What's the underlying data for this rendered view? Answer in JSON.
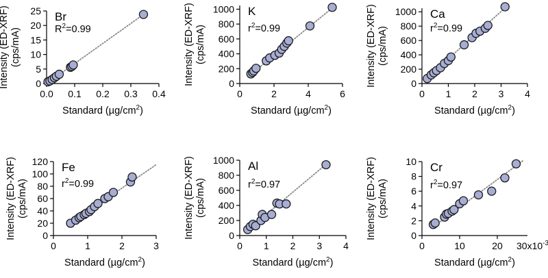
{
  "colors": {
    "marker_fill": "#a7add3",
    "marker_edge": "#1a1a1a",
    "fit_line": "#8a8a8a",
    "axis": "#000000"
  },
  "chart_data": [
    {
      "type": "scatter",
      "element": "Br",
      "r2_prefix": "R",
      "r2_value": "=0.99",
      "xlabel": "Standard (µg/cm",
      "xlabel_sup": "2",
      "xlabel_end": ")",
      "ylabel_1": "Intensity (ED-XRF)",
      "ylabel_2": "(cps/mA)",
      "xlim": [
        0,
        0.4
      ],
      "ylim": [
        0,
        25
      ],
      "xticks": [
        0.0,
        0.1,
        0.2,
        0.3,
        0.4
      ],
      "xtick_labels": [
        "0.0",
        "0.1",
        "0.2",
        "0.3",
        "0.4"
      ],
      "yticks": [
        0,
        5,
        10,
        15,
        20,
        25
      ],
      "ytick_labels": [
        "0",
        "5",
        "10",
        "15",
        "20",
        "25"
      ],
      "x_multiplier_label": "",
      "fit": {
        "x": [
          0.0,
          0.345
        ],
        "y": [
          0.0,
          23.8
        ]
      },
      "x": [
        0.005,
        0.012,
        0.02,
        0.028,
        0.035,
        0.045,
        0.085,
        0.09,
        0.095,
        0.345
      ],
      "y": [
        0.6,
        0.9,
        1.4,
        2.0,
        2.5,
        3.2,
        5.6,
        5.9,
        6.4,
        23.8
      ]
    },
    {
      "type": "scatter",
      "element": "K",
      "r2_prefix": "r",
      "r2_value": "=0.99",
      "xlabel": "Standard (µg/cm",
      "xlabel_sup": "2",
      "xlabel_end": ")",
      "ylabel_1": "Intensity (ED-XRF)",
      "ylabel_2": "(cps/mA)",
      "xlim": [
        0,
        6
      ],
      "ylim": [
        0,
        1050
      ],
      "xticks": [
        0,
        2,
        4,
        6
      ],
      "xtick_labels": [
        "0",
        "2",
        "4",
        "6"
      ],
      "yticks": [
        0,
        200,
        400,
        600,
        800,
        1000
      ],
      "ytick_labels": [
        "0",
        "200",
        "400",
        "600",
        "800",
        "1000"
      ],
      "x_multiplier_label": "",
      "fit": {
        "x": [
          0.6,
          5.45
        ],
        "y": [
          115,
          1025
        ]
      },
      "x": [
        0.65,
        0.75,
        0.82,
        0.95,
        1.55,
        1.75,
        2.05,
        2.3,
        2.45,
        2.6,
        2.75,
        2.85,
        4.1,
        5.4
      ],
      "y": [
        130,
        150,
        170,
        205,
        305,
        345,
        380,
        410,
        460,
        500,
        545,
        575,
        775,
        1025
      ]
    },
    {
      "type": "scatter",
      "element": "Ca",
      "r2_prefix": "r",
      "r2_value": "=0.99",
      "xlabel": "Standard (µg/cm",
      "xlabel_sup": "2",
      "xlabel_end": ")",
      "ylabel_1": "Intensity (ED-XRF)",
      "ylabel_2": "(cps/mA)",
      "xlim": [
        0,
        4
      ],
      "ylim": [
        0,
        1050
      ],
      "xticks": [
        0,
        1,
        2,
        3,
        4
      ],
      "xtick_labels": [
        "0",
        "1",
        "2",
        "3",
        "4"
      ],
      "yticks": [
        0,
        200,
        400,
        600,
        800,
        1000
      ],
      "ytick_labels": [
        "0",
        "200",
        "400",
        "600",
        "800",
        "1000"
      ],
      "x_multiplier_label": "",
      "fit": {
        "x": [
          0.1,
          3.2
        ],
        "y": [
          50,
          1070
        ]
      },
      "x": [
        0.2,
        0.35,
        0.45,
        0.55,
        0.7,
        0.85,
        1.0,
        1.1,
        1.6,
        1.9,
        2.05,
        2.2,
        2.4,
        2.5,
        3.15
      ],
      "y": [
        70,
        120,
        150,
        180,
        220,
        280,
        320,
        370,
        540,
        640,
        700,
        730,
        770,
        810,
        1070
      ]
    },
    {
      "type": "scatter",
      "element": "Fe",
      "r2_prefix": "r",
      "r2_value": "=0.99",
      "xlabel": "Standard (µg/cm",
      "xlabel_sup": "2",
      "xlabel_end": ")",
      "ylabel_1": "Intensity (ED-XRF)",
      "ylabel_2": "(cps/mA)",
      "xlim": [
        0,
        3
      ],
      "ylim": [
        0,
        120
      ],
      "xticks": [
        0,
        1,
        2,
        3
      ],
      "xtick_labels": [
        "0",
        "1",
        "2",
        "3"
      ],
      "yticks": [
        0,
        20,
        40,
        60,
        80,
        100,
        120
      ],
      "ytick_labels": [
        "0",
        "20",
        "40",
        "60",
        "80",
        "100",
        "120"
      ],
      "x_multiplier_label": "",
      "fit": {
        "x": [
          0.45,
          3.0
        ],
        "y": [
          18,
          115
        ]
      },
      "x": [
        0.5,
        0.65,
        0.75,
        0.8,
        0.9,
        0.95,
        1.05,
        1.1,
        1.2,
        1.3,
        1.5,
        1.6,
        1.75,
        2.25,
        2.3
      ],
      "y": [
        20,
        25,
        29,
        31,
        34,
        36,
        39,
        42,
        47,
        52,
        60,
        63,
        70,
        87,
        95
      ]
    },
    {
      "type": "scatter",
      "element": "Al",
      "r2_prefix": "r",
      "r2_value": "=0.97",
      "xlabel": "Standard (µg/cm",
      "xlabel_sup": "2",
      "xlabel_end": ")",
      "ylabel_1": "Intensity (ED-XRF)",
      "ylabel_2": "(cps/mA)",
      "xlim": [
        0,
        4
      ],
      "ylim": [
        0,
        1000
      ],
      "xticks": [
        0,
        1,
        2,
        3,
        4
      ],
      "xtick_labels": [
        "0",
        "1",
        "2",
        "3",
        "4"
      ],
      "yticks": [
        0,
        200,
        400,
        600,
        800,
        1000
      ],
      "ytick_labels": [
        "0",
        "200",
        "400",
        "600",
        "800",
        "1000"
      ],
      "x_multiplier_label": "",
      "fit": {
        "x": [
          0.25,
          3.3
        ],
        "y": [
          60,
          960
        ]
      },
      "x": [
        0.3,
        0.4,
        0.5,
        0.6,
        0.8,
        0.85,
        0.95,
        1.2,
        1.4,
        1.5,
        1.75,
        3.25
      ],
      "y": [
        80,
        120,
        150,
        130,
        200,
        280,
        240,
        280,
        430,
        420,
        420,
        940
      ]
    },
    {
      "type": "scatter",
      "element": "Cr",
      "r2_prefix": "r",
      "r2_value": "=0.97",
      "xlabel": "Standard (µg/cm",
      "xlabel_sup": "2",
      "xlabel_end": ")",
      "ylabel_1": "Intensity (ED-XRF)",
      "ylabel_2": "(cps/mA)",
      "xlim": [
        0,
        28
      ],
      "ylim": [
        0,
        10
      ],
      "xticks": [
        0,
        10,
        20
      ],
      "xtick_labels": [
        "0",
        "10",
        "20"
      ],
      "yticks": [
        0,
        2,
        4,
        6,
        8,
        10
      ],
      "ytick_labels": [
        "0",
        "2",
        "4",
        "6",
        "8",
        "10"
      ],
      "x_multiplier_label": "30x10",
      "x_multiplier_exp": "-3",
      "fit": {
        "x": [
          2.5,
          27
        ],
        "y": [
          1.0,
          10.2
        ]
      },
      "x": [
        3,
        3.5,
        6,
        6.5,
        7,
        8,
        8.5,
        10,
        11,
        15,
        18.5,
        22,
        25
      ],
      "y": [
        1.5,
        1.7,
        2.5,
        2.9,
        3.0,
        3.3,
        3.5,
        4.3,
        4.7,
        5.5,
        6.0,
        7.8,
        9.7
      ]
    }
  ]
}
